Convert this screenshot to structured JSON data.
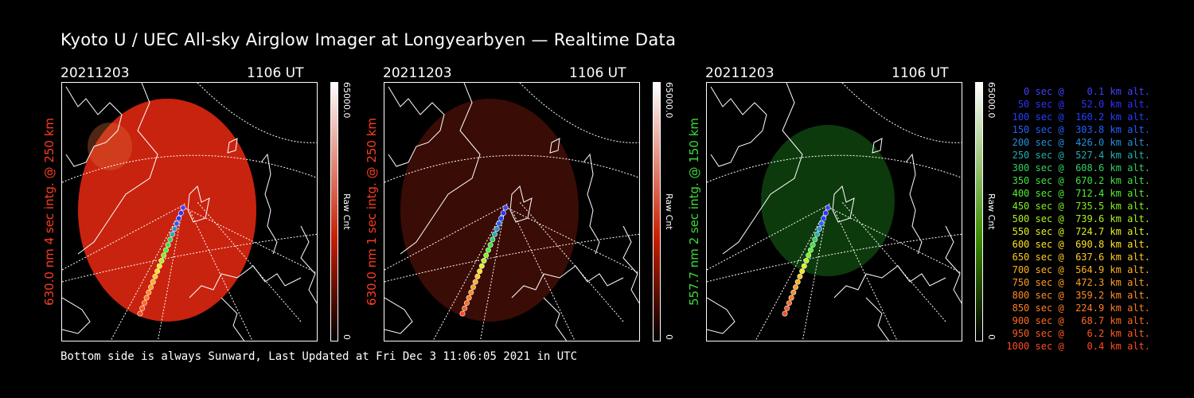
{
  "title": "Kyoto U / UEC All-sky Airglow Imager at Longyearbyen — Realtime Data",
  "panels": [
    {
      "date": "20211203",
      "ut": "1106 UT",
      "ylabel": "630.0 nm 4 sec intg. @ 250 km",
      "ylabel_color": "#ff3c1e",
      "max": "65000.0",
      "min": "0",
      "cbar_label": "Raw Cnt",
      "disk_color": "#c8230f",
      "cbar_top": "#ffffff",
      "cbar_bottom": "#c81e00"
    },
    {
      "date": "20211203",
      "ut": "1106 UT",
      "ylabel": "630.0 nm 1 sec intg. @ 250 km",
      "ylabel_color": "#ff3c1e",
      "max": "65000.0",
      "min": "0",
      "cbar_label": "Raw Cnt",
      "disk_color": "#3a0c06",
      "cbar_top": "#ffffff",
      "cbar_bottom": "#c81e00"
    },
    {
      "date": "20211203",
      "ut": "1106 UT",
      "ylabel": "557.7 nm 2 sec intg. @ 150 km",
      "ylabel_color": "#3cdc3c",
      "max": "65000.0",
      "min": "0",
      "cbar_label": "Raw Cnt",
      "disk_color": "#0d3a0d",
      "cbar_top": "#ffffff",
      "cbar_bottom": "#3c8c00"
    }
  ],
  "footer": "Bottom side is always Sunward, Last Updated at Fri Dec  3 11:06:05 2021 in UTC",
  "legend": [
    {
      "text": "   0 sec @    0.1 km alt.",
      "color": "#4040ff"
    },
    {
      "text": "  50 sec @   52.0 km alt.",
      "color": "#3030ff"
    },
    {
      "text": " 100 sec @  160.2 km alt.",
      "color": "#2040ff"
    },
    {
      "text": " 150 sec @  303.8 km alt.",
      "color": "#2060ff"
    },
    {
      "text": " 200 sec @  426.0 km alt.",
      "color": "#2090e0"
    },
    {
      "text": " 250 sec @  527.4 km alt.",
      "color": "#20b0b0"
    },
    {
      "text": " 300 sec @  608.6 km alt.",
      "color": "#30d060"
    },
    {
      "text": " 350 sec @  670.2 km alt.",
      "color": "#40e040"
    },
    {
      "text": " 400 sec @  712.4 km alt.",
      "color": "#50f030"
    },
    {
      "text": " 450 sec @  735.5 km alt.",
      "color": "#80f020"
    },
    {
      "text": " 500 sec @  739.6 km alt.",
      "color": "#b0f020"
    },
    {
      "text": " 550 sec @  724.7 km alt.",
      "color": "#e0f020"
    },
    {
      "text": " 600 sec @  690.8 km alt.",
      "color": "#ffe020"
    },
    {
      "text": " 650 sec @  637.6 km alt.",
      "color": "#ffc820"
    },
    {
      "text": " 700 sec @  564.9 km alt.",
      "color": "#ffb020"
    },
    {
      "text": " 750 sec @  472.3 km alt.",
      "color": "#ff9c20"
    },
    {
      "text": " 800 sec @  359.2 km alt.",
      "color": "#ff8c20"
    },
    {
      "text": " 850 sec @  224.9 km alt.",
      "color": "#ff7c20"
    },
    {
      "text": " 900 sec @   68.7 km alt.",
      "color": "#ff6a20"
    },
    {
      "text": " 950 sec @    6.2 km alt.",
      "color": "#ff5a20"
    },
    {
      "text": "1000 sec @    0.4 km alt.",
      "color": "#ff4a20"
    }
  ]
}
